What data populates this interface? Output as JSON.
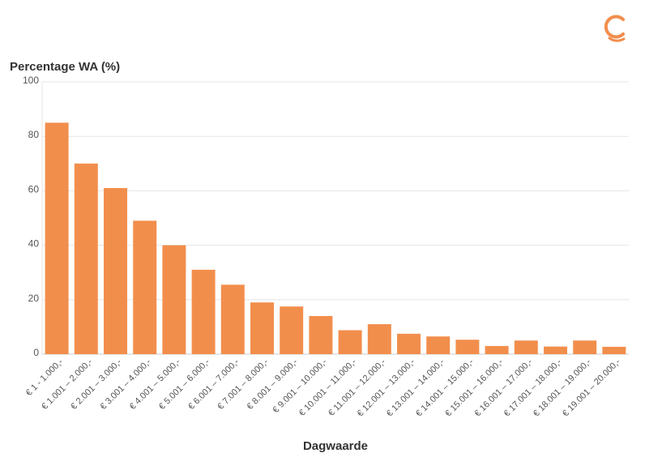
{
  "chart_data": {
    "type": "bar",
    "ylabel": "Percentage WA (%)",
    "xlabel": "Dagwaarde",
    "ylim": [
      0,
      100
    ],
    "yticks": [
      0,
      20,
      40,
      60,
      80,
      100
    ],
    "grid": true,
    "bar_color": "#f28e4c",
    "categories": [
      "€ 1 - 1.000,-",
      "€ 1.001 – 2.000,-",
      "€ 2.001 – 3.000,-",
      "€ 3.001 – 4.000,-",
      "€ 4.001 – 5.000,-",
      "€ 5.001 – 6.000,-",
      "€ 6.001 – 7.000,-",
      "€ 7.001 – 8.000,-",
      "€ 8.001 – 9.000,-",
      "€ 9.001 – 10.000,-",
      "€ 10.001 – 11.000,-",
      "€ 11.001 – 12.000,-",
      "€ 12.001 – 13.000,-",
      "€ 13.001 – 14.000,-",
      "€ 14.001 – 15.000,-",
      "€ 15.001 – 16.000,-",
      "€ 16.001 – 17.000,-",
      "€ 17.001 – 18.000,-",
      "€ 18.001 – 19.000,-",
      "€ 19.001 – 20.000,-"
    ],
    "values": [
      85,
      70,
      61,
      49,
      40,
      31,
      25.5,
      19,
      17.5,
      14,
      8.8,
      11,
      7.5,
      6.5,
      5.3,
      3,
      5,
      2.8,
      5,
      2.7
    ]
  },
  "logo": {
    "icon": "brand-c-logo-icon",
    "color": "#f28e4c"
  }
}
